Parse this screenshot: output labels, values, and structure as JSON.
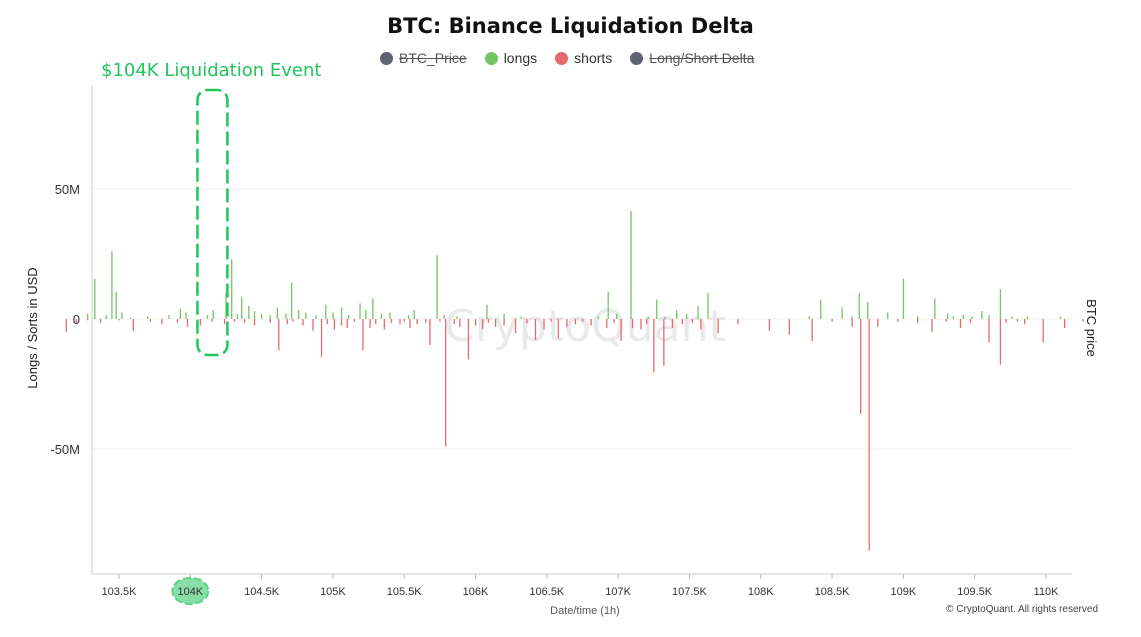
{
  "title": "BTC: Binance Liquidation Delta",
  "legend": [
    {
      "label": "BTC_Price",
      "color": "#5f6270",
      "active": false
    },
    {
      "label": "longs",
      "color": "#74c566",
      "active": true
    },
    {
      "label": "shorts",
      "color": "#e66a6a",
      "active": true
    },
    {
      "label": "Long/Short Delta",
      "color": "#5f6270",
      "active": false
    }
  ],
  "annotation": {
    "text": "$104K Liquidation Event",
    "color": "#22c55e"
  },
  "copyright": "© CryptoQuant. All rights reserved",
  "watermark": "CryptoQuant",
  "chart_data": {
    "type": "bar",
    "title": "BTC: Binance Liquidation Delta",
    "xlabel": "Date/time (1h)",
    "ylabel": "Longs / Sorts in USD",
    "y2label": "BTC price",
    "x_ticks": [
      "103.5K",
      "104K",
      "104.5K",
      "105K",
      "105.5K",
      "106K",
      "106.5K",
      "107K",
      "107.5K",
      "108K",
      "108.5K",
      "109K",
      "109.5K",
      "110K"
    ],
    "x_tick_values": [
      103.5,
      104.0,
      104.5,
      105.0,
      105.5,
      106.0,
      106.5,
      107.0,
      107.5,
      108.0,
      108.5,
      109.0,
      109.5,
      110.0
    ],
    "highlighted_tick": "104K",
    "y_ticks": [
      {
        "value": 50,
        "label": "50M"
      },
      {
        "value": 0,
        "label": "0"
      },
      {
        "value": -50,
        "label": "-50M"
      }
    ],
    "ylim": [
      -98,
      90
    ],
    "xlim": [
      103.1,
      110.25
    ],
    "grid": true,
    "highlight_range": [
      104.05,
      104.26
    ],
    "series": [
      {
        "name": "longs",
        "color": "#74c566",
        "points": [
          [
            103.28,
            2.0
          ],
          [
            103.33,
            15.5
          ],
          [
            103.41,
            1.5
          ],
          [
            103.45,
            26.0
          ],
          [
            103.48,
            10.5
          ],
          [
            103.52,
            2.5
          ],
          [
            103.58,
            0.5
          ],
          [
            103.7,
            1.0
          ],
          [
            103.85,
            1.5
          ],
          [
            103.93,
            4.0
          ],
          [
            103.97,
            2.5
          ],
          [
            104.12,
            1.5
          ],
          [
            104.16,
            3.5
          ],
          [
            104.25,
            10.0
          ],
          [
            104.29,
            23.0
          ],
          [
            104.33,
            2.0
          ],
          [
            104.36,
            8.5
          ],
          [
            104.41,
            5.0
          ],
          [
            104.45,
            3.0
          ],
          [
            104.5,
            2.0
          ],
          [
            104.56,
            1.5
          ],
          [
            104.61,
            4.5
          ],
          [
            104.67,
            2.0
          ],
          [
            104.71,
            14.0
          ],
          [
            104.76,
            3.5
          ],
          [
            104.81,
            2.5
          ],
          [
            104.88,
            1.5
          ],
          [
            104.95,
            5.5
          ],
          [
            105.0,
            2.5
          ],
          [
            105.06,
            4.5
          ],
          [
            105.11,
            1.5
          ],
          [
            105.19,
            6.0
          ],
          [
            105.23,
            3.5
          ],
          [
            105.28,
            8.0
          ],
          [
            105.34,
            2.0
          ],
          [
            105.4,
            2.5
          ],
          [
            105.53,
            1.5
          ],
          [
            105.57,
            3.5
          ],
          [
            105.73,
            24.5
          ],
          [
            105.78,
            1.5
          ],
          [
            105.87,
            1.0
          ],
          [
            106.08,
            5.5
          ],
          [
            106.2,
            2.0
          ],
          [
            106.32,
            1.0
          ],
          [
            106.86,
            1.0
          ],
          [
            106.93,
            10.5
          ],
          [
            106.99,
            2.0
          ],
          [
            107.09,
            41.5
          ],
          [
            107.21,
            1.0
          ],
          [
            107.27,
            7.5
          ],
          [
            107.33,
            1.0
          ],
          [
            107.41,
            3.5
          ],
          [
            107.48,
            2.0
          ],
          [
            107.56,
            5.0
          ],
          [
            107.63,
            10.0
          ],
          [
            108.34,
            1.0
          ],
          [
            108.42,
            7.5
          ],
          [
            108.57,
            4.5
          ],
          [
            108.64,
            1.0
          ],
          [
            108.69,
            10.0
          ],
          [
            108.75,
            6.5
          ],
          [
            108.89,
            2.5
          ],
          [
            109.0,
            15.5
          ],
          [
            109.1,
            1.0
          ],
          [
            109.22,
            8.0
          ],
          [
            109.31,
            2.0
          ],
          [
            109.35,
            1.0
          ],
          [
            109.42,
            1.5
          ],
          [
            109.48,
            1.0
          ],
          [
            109.55,
            3.0
          ],
          [
            109.6,
            1.5
          ],
          [
            109.68,
            11.5
          ],
          [
            109.76,
            1.0
          ],
          [
            109.87,
            1.0
          ],
          [
            110.1,
            1.0
          ]
        ]
      },
      {
        "name": "shorts",
        "color": "#e66a6a",
        "points": [
          [
            103.13,
            -5.0
          ],
          [
            103.2,
            -1.5
          ],
          [
            103.28,
            -0.5
          ],
          [
            103.37,
            -1.5
          ],
          [
            103.5,
            -0.5
          ],
          [
            103.6,
            -4.5
          ],
          [
            103.72,
            -1.0
          ],
          [
            103.8,
            -2.0
          ],
          [
            103.91,
            -1.5
          ],
          [
            103.98,
            -3.0
          ],
          [
            104.07,
            -2.5
          ],
          [
            104.15,
            -1.0
          ],
          [
            104.24,
            -2.0
          ],
          [
            104.31,
            -1.0
          ],
          [
            104.38,
            -1.5
          ],
          [
            104.45,
            -2.5
          ],
          [
            104.56,
            -1.5
          ],
          [
            104.62,
            -12.0
          ],
          [
            104.68,
            -2.0
          ],
          [
            104.72,
            -1.0
          ],
          [
            104.79,
            -2.5
          ],
          [
            104.86,
            -4.5
          ],
          [
            104.92,
            -14.5
          ],
          [
            104.96,
            -2.0
          ],
          [
            105.01,
            -4.0
          ],
          [
            105.06,
            -2.5
          ],
          [
            105.1,
            -3.5
          ],
          [
            105.15,
            -1.0
          ],
          [
            105.21,
            -12.0
          ],
          [
            105.26,
            -3.5
          ],
          [
            105.3,
            -2.0
          ],
          [
            105.36,
            -4.0
          ],
          [
            105.41,
            -1.5
          ],
          [
            105.47,
            -2.0
          ],
          [
            105.5,
            -1.0
          ],
          [
            105.54,
            -3.5
          ],
          [
            105.59,
            -2.0
          ],
          [
            105.65,
            -1.5
          ],
          [
            105.68,
            -10.0
          ],
          [
            105.75,
            -1.0
          ],
          [
            105.79,
            -49.0
          ],
          [
            105.85,
            -2.0
          ],
          [
            105.89,
            -3.0
          ],
          [
            105.95,
            -15.5
          ],
          [
            106.0,
            -2.5
          ],
          [
            106.05,
            -4.0
          ],
          [
            106.09,
            -1.5
          ],
          [
            106.14,
            -3.0
          ],
          [
            106.2,
            -2.5
          ],
          [
            106.28,
            -5.5
          ],
          [
            106.36,
            -1.5
          ],
          [
            106.42,
            -8.0
          ],
          [
            106.48,
            -4.0
          ],
          [
            106.53,
            -1.0
          ],
          [
            106.58,
            -7.5
          ],
          [
            106.64,
            -3.0
          ],
          [
            106.7,
            -2.0
          ],
          [
            106.75,
            -1.0
          ],
          [
            106.81,
            -2.5
          ],
          [
            106.92,
            -3.5
          ],
          [
            106.97,
            -1.5
          ],
          [
            107.02,
            -8.5
          ],
          [
            107.1,
            -3.5
          ],
          [
            107.16,
            -4.0
          ],
          [
            107.2,
            -2.0
          ],
          [
            107.25,
            -20.5
          ],
          [
            107.32,
            -18.0
          ],
          [
            107.38,
            -3.5
          ],
          [
            107.45,
            -2.0
          ],
          [
            107.52,
            -1.5
          ],
          [
            107.58,
            -4.0
          ],
          [
            107.7,
            -5.5
          ],
          [
            107.84,
            -2.0
          ],
          [
            108.06,
            -4.5
          ],
          [
            108.2,
            -6.0
          ],
          [
            108.36,
            -8.5
          ],
          [
            108.5,
            -1.0
          ],
          [
            108.64,
            -3.0
          ],
          [
            108.7,
            -36.5
          ],
          [
            108.76,
            -89.0
          ],
          [
            108.82,
            -3.0
          ],
          [
            108.96,
            -1.0
          ],
          [
            109.1,
            -1.5
          ],
          [
            109.2,
            -5.0
          ],
          [
            109.3,
            -1.0
          ],
          [
            109.4,
            -3.5
          ],
          [
            109.47,
            -1.5
          ],
          [
            109.6,
            -9.0
          ],
          [
            109.68,
            -17.5
          ],
          [
            109.72,
            -1.5
          ],
          [
            109.8,
            -1.0
          ],
          [
            109.85,
            -2.0
          ],
          [
            109.98,
            -9.0
          ],
          [
            110.13,
            -3.5
          ],
          [
            110.26,
            -1.0
          ]
        ]
      }
    ]
  }
}
